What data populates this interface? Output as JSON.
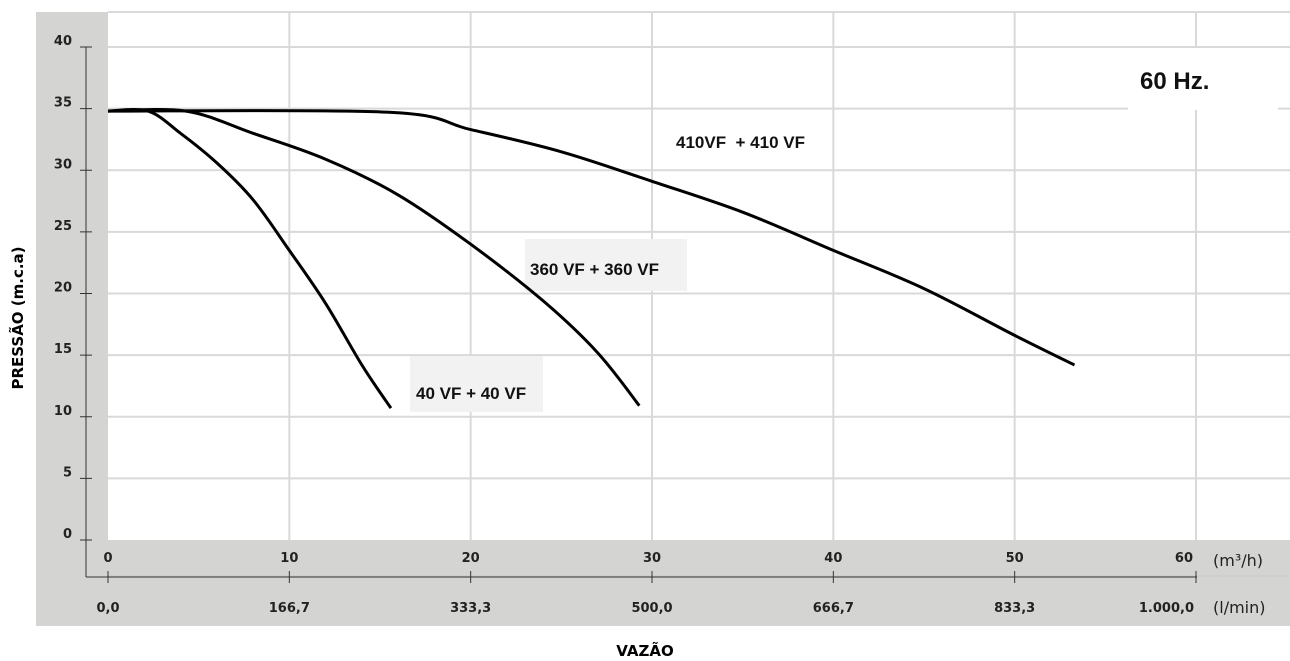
{
  "chart_data": {
    "type": "line",
    "title": "",
    "frequency_label": "60 Hz.",
    "ylabel": "PRESSÃO (m.c.a)",
    "xlabel": "VAZÃO",
    "x_unit": "(m³/h)",
    "x2_unit": "(l/min)",
    "xlim": [
      0,
      60
    ],
    "ylim": [
      0,
      40
    ],
    "x_ticks": [
      0,
      10,
      20,
      30,
      40,
      50,
      60
    ],
    "x_tick_labels": [
      "0",
      "10",
      "20",
      "30",
      "40",
      "50",
      "60"
    ],
    "x2_tick_labels": [
      "0,0",
      "166,7",
      "333,3",
      "500,0",
      "666,7",
      "833,3",
      "1.000,0"
    ],
    "y_ticks": [
      0,
      5,
      10,
      15,
      20,
      25,
      30,
      35,
      40
    ],
    "y_tick_labels": [
      "0",
      "5",
      "10",
      "15",
      "20",
      "25",
      "30",
      "35",
      "40"
    ],
    "grid": true,
    "series": [
      {
        "name": "40 VF + 40 VF",
        "x": [
          0,
          2.2,
          4,
          6,
          8,
          10,
          12,
          14,
          15.6
        ],
        "y": [
          34.8,
          34.8,
          33.0,
          30.6,
          27.6,
          23.5,
          19.2,
          14.2,
          10.7
        ]
      },
      {
        "name": "360 VF + 360 VF",
        "x": [
          0,
          4.3,
          8,
          12,
          16,
          20,
          24,
          27,
          29.3
        ],
        "y": [
          34.8,
          34.8,
          33.0,
          30.9,
          28.0,
          24.0,
          19.4,
          15.2,
          10.9
        ]
      },
      {
        "name": "410VF  + 410 VF",
        "x": [
          0,
          15.5,
          20,
          25,
          30,
          35,
          40,
          45,
          50,
          53.3
        ],
        "y": [
          34.8,
          34.7,
          33.3,
          31.5,
          29.1,
          26.6,
          23.5,
          20.4,
          16.6,
          14.2
        ]
      }
    ],
    "colors": {
      "line": "#000000",
      "grid": "#d9d9d9",
      "axis_band": "#d4d4d2",
      "frequency_box": "#ffffff",
      "label_box": "#f2f2f2"
    }
  }
}
